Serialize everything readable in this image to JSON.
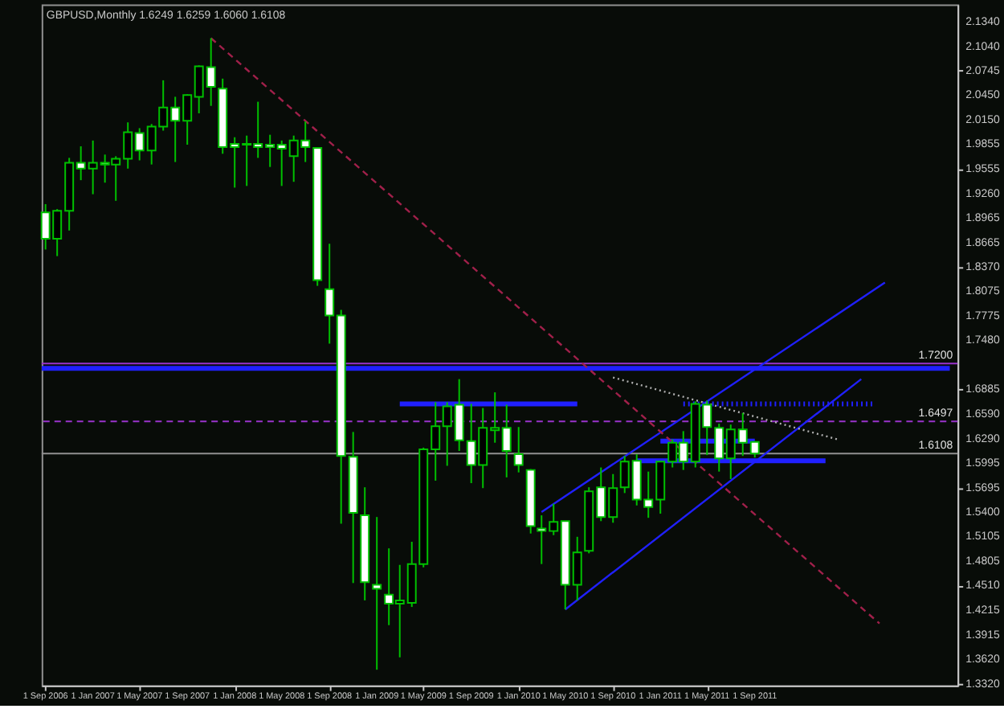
{
  "chart_data": {
    "type": "candlestick",
    "title": "GBPUSD,Monthly  1.6249 1.6259 1.6060 1.6108",
    "series": [
      {
        "color": "#00c000",
        "x": [
          "2006-09",
          "2006-10",
          "2006-11",
          "2006-12",
          "2007-01",
          "2007-02",
          "2007-03",
          "2007-04",
          "2007-05",
          "2007-06",
          "2007-07",
          "2007-08",
          "2007-09",
          "2007-10",
          "2007-11",
          "2007-12",
          "2008-01",
          "2008-02",
          "2008-03",
          "2008-04",
          "2008-05",
          "2008-06",
          "2008-07",
          "2008-08",
          "2008-09",
          "2008-10",
          "2008-11",
          "2008-12",
          "2009-01",
          "2009-02",
          "2009-03",
          "2009-04",
          "2009-05",
          "2009-06",
          "2009-07",
          "2009-08",
          "2009-09",
          "2009-10",
          "2009-11",
          "2009-12",
          "2010-01",
          "2010-02",
          "2010-03",
          "2010-04",
          "2010-05",
          "2010-06",
          "2010-07",
          "2010-08",
          "2010-09",
          "2010-10",
          "2010-11",
          "2010-12",
          "2011-01",
          "2011-02",
          "2011-03",
          "2011-04",
          "2011-05",
          "2011-06",
          "2011-07",
          "2011-08",
          "2011-09"
        ],
        "ohlc": [
          [
            1.903,
            1.913,
            1.858,
            1.871
          ],
          [
            1.871,
            1.907,
            1.85,
            1.905
          ],
          [
            1.905,
            1.969,
            1.881,
            1.963
          ],
          [
            1.963,
            1.983,
            1.942,
            1.956
          ],
          [
            1.956,
            1.99,
            1.925,
            1.963
          ],
          [
            1.963,
            1.973,
            1.939,
            1.961
          ],
          [
            1.961,
            1.971,
            1.917,
            1.968
          ],
          [
            1.968,
            2.012,
            1.956,
            2.0
          ],
          [
            1.999,
            2.005,
            1.966,
            1.978
          ],
          [
            1.978,
            2.01,
            1.961,
            2.007
          ],
          [
            2.007,
            2.063,
            2.002,
            2.03
          ],
          [
            2.03,
            2.043,
            1.964,
            2.014
          ],
          [
            2.014,
            2.046,
            1.985,
            2.045
          ],
          [
            2.043,
            2.081,
            2.023,
            2.08
          ],
          [
            2.079,
            2.114,
            2.032,
            2.055
          ],
          [
            2.053,
            2.065,
            1.974,
            1.982
          ],
          [
            1.986,
            1.994,
            1.933,
            1.982
          ],
          [
            1.986,
            1.996,
            1.935,
            1.985
          ],
          [
            1.986,
            2.037,
            1.969,
            1.982
          ],
          [
            1.985,
            1.997,
            1.958,
            1.982
          ],
          [
            1.985,
            1.99,
            1.935,
            1.98
          ],
          [
            1.971,
            1.996,
            1.94,
            1.99
          ],
          [
            1.99,
            2.013,
            1.964,
            1.982
          ],
          [
            1.981,
            1.981,
            1.814,
            1.821
          ],
          [
            1.81,
            1.865,
            1.744,
            1.778
          ],
          [
            1.778,
            1.785,
            1.526,
            1.608
          ],
          [
            1.607,
            1.637,
            1.454,
            1.539
          ],
          [
            1.536,
            1.57,
            1.433,
            1.455
          ],
          [
            1.452,
            1.534,
            1.349,
            1.447
          ],
          [
            1.44,
            1.496,
            1.403,
            1.429
          ],
          [
            1.429,
            1.476,
            1.364,
            1.433
          ],
          [
            1.43,
            1.504,
            1.425,
            1.477
          ],
          [
            1.477,
            1.618,
            1.473,
            1.616
          ],
          [
            1.616,
            1.673,
            1.578,
            1.644
          ],
          [
            1.644,
            1.673,
            1.596,
            1.668
          ],
          [
            1.67,
            1.701,
            1.614,
            1.627
          ],
          [
            1.626,
            1.671,
            1.575,
            1.597
          ],
          [
            1.597,
            1.666,
            1.569,
            1.642
          ],
          [
            1.639,
            1.685,
            1.624,
            1.642
          ],
          [
            1.642,
            1.67,
            1.582,
            1.614
          ],
          [
            1.61,
            1.643,
            1.588,
            1.597
          ],
          [
            1.591,
            1.592,
            1.514,
            1.523
          ],
          [
            1.52,
            1.536,
            1.477,
            1.517
          ],
          [
            1.517,
            1.55,
            1.512,
            1.528
          ],
          [
            1.529,
            1.529,
            1.422,
            1.452
          ],
          [
            1.452,
            1.51,
            1.433,
            1.491
          ],
          [
            1.493,
            1.57,
            1.49,
            1.565
          ],
          [
            1.57,
            1.594,
            1.529,
            1.534
          ],
          [
            1.534,
            1.586,
            1.527,
            1.569
          ],
          [
            1.57,
            1.608,
            1.563,
            1.601
          ],
          [
            1.602,
            1.61,
            1.548,
            1.555
          ],
          [
            1.555,
            1.589,
            1.533,
            1.546
          ],
          [
            1.555,
            1.602,
            1.538,
            1.601
          ],
          [
            1.601,
            1.628,
            1.594,
            1.624
          ],
          [
            1.624,
            1.638,
            1.591,
            1.601
          ],
          [
            1.601,
            1.674,
            1.594,
            1.671
          ],
          [
            1.67,
            1.675,
            1.609,
            1.643
          ],
          [
            1.642,
            1.647,
            1.589,
            1.605
          ],
          [
            1.605,
            1.646,
            1.58,
            1.64
          ],
          [
            1.64,
            1.66,
            1.608,
            1.624
          ],
          [
            1.6249,
            1.6259,
            1.606,
            1.6108
          ]
        ]
      },
      {
        "type": "line",
        "color": "#2020ff",
        "line_style": "solid",
        "x": [
          "2006-08-22",
          "2013-01-15"
        ],
        "values": [
          1.714,
          1.714
        ]
      },
      {
        "type": "line",
        "color": "#2020ff",
        "line_style": "solid",
        "x": [
          "2009-03",
          "2010-06"
        ],
        "values": [
          1.671,
          1.671
        ]
      },
      {
        "type": "line",
        "color": "#2020ff",
        "line_style": "dotted",
        "x": [
          "2011-03",
          "2012-07"
        ],
        "values": [
          1.671,
          1.671
        ]
      },
      {
        "type": "line",
        "color": "#2020ff",
        "line_style": "solid",
        "x": [
          "2010-11",
          "2012-03"
        ],
        "values": [
          1.602,
          1.602
        ]
      },
      {
        "type": "line",
        "color": "#2020ff",
        "line_style": "solid",
        "x": [
          "2011-01",
          "2011-09"
        ],
        "values": [
          1.626,
          1.626
        ]
      },
      {
        "type": "line",
        "color": "#2020ff",
        "line_style": "solid",
        "x": [
          "2010-03",
          "2012-08"
        ],
        "values": [
          1.54,
          1.818
        ]
      },
      {
        "type": "line",
        "color": "#2020ff",
        "line_style": "solid",
        "x": [
          "2010-05",
          "2012-06"
        ],
        "values": [
          1.422,
          1.701
        ]
      },
      {
        "type": "line",
        "color": "#a0204a",
        "line_style": "dashed",
        "x": [
          "2007-11",
          "2012-07-18"
        ],
        "values": [
          2.114,
          1.405
        ]
      },
      {
        "type": "line",
        "color": "#b0b0b0",
        "line_style": "dotted",
        "x": [
          "2010-09",
          "2012-04"
        ],
        "values": [
          1.703,
          1.628
        ]
      }
    ],
    "ref_lines": [
      {
        "axis": "y",
        "value": 1.72,
        "label": "1.7200",
        "color": "#9933cc",
        "line_style": "solid"
      },
      {
        "axis": "y",
        "value": 1.6497,
        "label": "1.6497",
        "color": "#9933cc",
        "line_style": "dashed"
      },
      {
        "axis": "y",
        "value": 1.6108,
        "label": "1.6108",
        "color": "#909090",
        "line_style": "solid"
      }
    ],
    "xlim": [
      "2006-08-22",
      "2013-02-04"
    ],
    "xticks": [
      {
        "value": "2006-09-01",
        "label": "1 Sep 2006"
      },
      {
        "value": "2007-01-01",
        "label": "1 Jan 2007"
      },
      {
        "value": "2007-05-01",
        "label": "1 May 2007"
      },
      {
        "value": "2007-09-01",
        "label": "1 Sep 2007"
      },
      {
        "value": "2008-01-01",
        "label": "1 Jan 2008"
      },
      {
        "value": "2008-05-01",
        "label": "1 May 2008"
      },
      {
        "value": "2008-09-01",
        "label": "1 Sep 2008"
      },
      {
        "value": "2009-01-01",
        "label": "1 Jan 2009"
      },
      {
        "value": "2009-05-01",
        "label": "1 May 2009"
      },
      {
        "value": "2009-09-01",
        "label": "1 Sep 2009"
      },
      {
        "value": "2010-01-01",
        "label": "1 Jan 2010"
      },
      {
        "value": "2010-05-01",
        "label": "1 May 2010"
      },
      {
        "value": "2010-09-01",
        "label": "1 Sep 2010"
      },
      {
        "value": "2011-01-01",
        "label": "1 Jan 2011"
      },
      {
        "value": "2011-05-01",
        "label": "1 May 2011"
      },
      {
        "value": "2011-09-01",
        "label": "1 Sep 2011"
      }
    ],
    "ylim": [
      1.33,
      2.155
    ],
    "yticks": [
      {
        "value": 2.134,
        "label": "2.1340"
      },
      {
        "value": 2.104,
        "label": "2.1040"
      },
      {
        "value": 2.0745,
        "label": "2.0745"
      },
      {
        "value": 2.045,
        "label": "2.0450"
      },
      {
        "value": 2.015,
        "label": "2.0150"
      },
      {
        "value": 1.9855,
        "label": "1.9855"
      },
      {
        "value": 1.9555,
        "label": "1.9555"
      },
      {
        "value": 1.926,
        "label": "1.9260"
      },
      {
        "value": 1.8965,
        "label": "1.8965"
      },
      {
        "value": 1.8665,
        "label": "1.8665"
      },
      {
        "value": 1.837,
        "label": "1.8370"
      },
      {
        "value": 1.8075,
        "label": "1.8075"
      },
      {
        "value": 1.7775,
        "label": "1.7775"
      },
      {
        "value": 1.748,
        "label": "1.7480"
      },
      {
        "value": 1.6885,
        "label": "1.6885"
      },
      {
        "value": 1.659,
        "label": "1.6590"
      },
      {
        "value": 1.629,
        "label": "1.6290"
      },
      {
        "value": 1.5995,
        "label": "1.5995"
      },
      {
        "value": 1.5695,
        "label": "1.5695"
      },
      {
        "value": 1.54,
        "label": "1.5400"
      },
      {
        "value": 1.5105,
        "label": "1.5105"
      },
      {
        "value": 1.4805,
        "label": "1.4805"
      },
      {
        "value": 1.451,
        "label": "1.4510"
      },
      {
        "value": 1.4215,
        "label": "1.4215"
      },
      {
        "value": 1.3915,
        "label": "1.3915"
      },
      {
        "value": 1.362,
        "label": "1.3620"
      },
      {
        "value": 1.332,
        "label": "1.3320"
      }
    ],
    "grid": false
  }
}
